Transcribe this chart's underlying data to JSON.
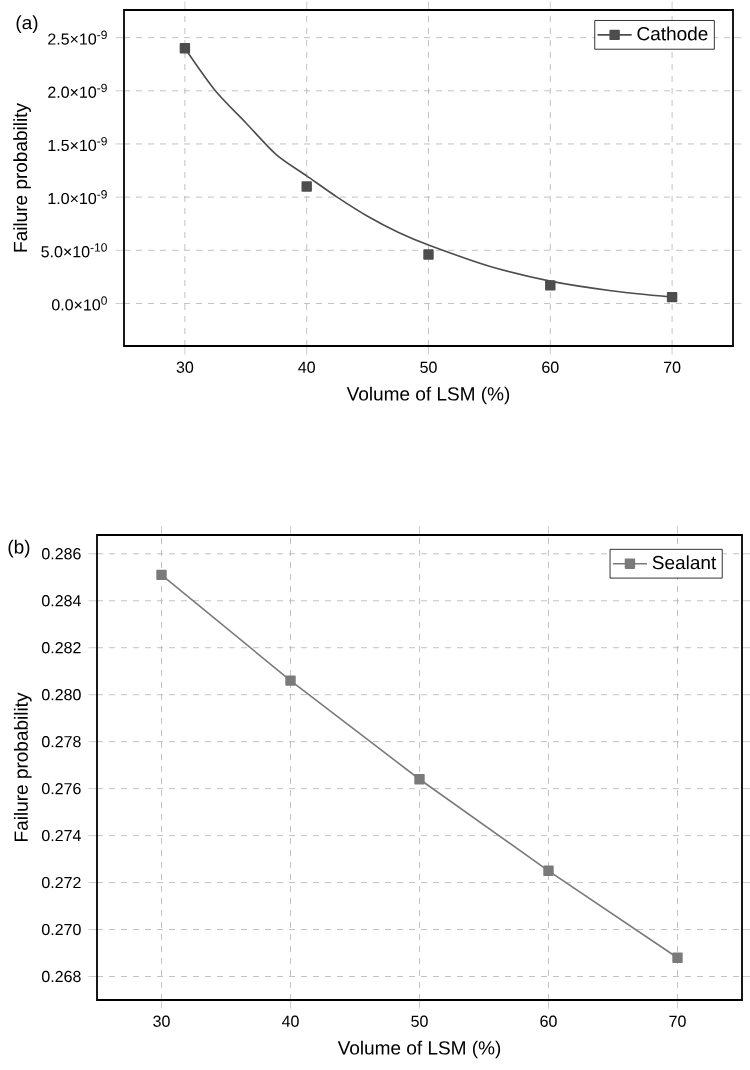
{
  "chart_data": [
    {
      "type": "scatter",
      "xlabel": "Volume of LSM (%)",
      "ylabel": "Failure probability",
      "annotations": [
        "(a)"
      ],
      "x": [
        30,
        40,
        50,
        60,
        70
      ],
      "series": [
        {
          "name": "Cathode",
          "type": "scatter",
          "color": "#4d4d4d",
          "values": [
            2.4e-09,
            1.1e-09,
            4.6e-10,
            1.7e-10,
            6e-11
          ]
        },
        {
          "type": "line",
          "color": "#4d4d4d",
          "marker": "none",
          "x": [
            30,
            32.5,
            35,
            37.5,
            40,
            42.5,
            45,
            47.5,
            50,
            55,
            60,
            65,
            70
          ],
          "values": [
            2.4e-09,
            2e-09,
            1.7e-09,
            1.4e-09,
            1.2e-09,
            1e-09,
            8.2e-10,
            6.7e-10,
            5.5e-10,
            3.5e-10,
            2.1e-10,
            1.2e-10,
            6e-11
          ]
        }
      ],
      "xlim": [
        25,
        75
      ],
      "xticks": [
        30,
        40,
        50,
        60,
        70
      ],
      "ylim": [
        -4e-10,
        2.76e-09
      ],
      "yticks": [
        {
          "value": 0,
          "label": "0.0×10$^{0}$"
        },
        {
          "value": 5e-10,
          "label": "5.0×10$^{-10}$"
        },
        {
          "value": 1e-09,
          "label": "1.0×10$^{-9}$"
        },
        {
          "value": 1.5e-09,
          "label": "1.5×10$^{-9}$"
        },
        {
          "value": 2e-09,
          "label": "2.0×10$^{-9}$"
        },
        {
          "value": 2.5e-09,
          "label": "2.5×10$^{-9}$"
        }
      ],
      "grid": true,
      "legend": "top right",
      "marker": "square",
      "line_style": "solid"
    },
    {
      "type": "line",
      "xlabel": "Volume of LSM (%)",
      "ylabel": "Failure probability",
      "annotations": [
        "(b)"
      ],
      "x": [
        30,
        40,
        50,
        60,
        70
      ],
      "series": [
        {
          "name": "Sealant",
          "color": "#7a7a7a",
          "values": [
            0.2851,
            0.2806,
            0.2764,
            0.2725,
            0.2688
          ]
        }
      ],
      "xlim": [
        25,
        75
      ],
      "xticks": [
        30,
        40,
        50,
        60,
        70
      ],
      "ylim": [
        0.267,
        0.2868
      ],
      "yticks": [
        0.268,
        {
          "value": 0.27,
          "label": "0.270"
        },
        0.272,
        0.274,
        0.276,
        0.278,
        {
          "value": 0.28,
          "label": "0.280"
        },
        0.282,
        0.284,
        0.286
      ],
      "grid": true,
      "legend": "top right",
      "marker": "square",
      "line_style": "solid"
    }
  ]
}
